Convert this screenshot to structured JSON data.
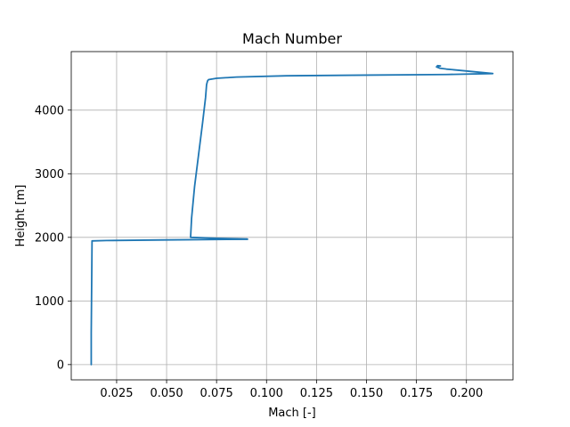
{
  "chart_data": {
    "type": "line",
    "title": "Mach Number",
    "xlabel": "Mach [-]",
    "ylabel": "Height [m]",
    "xlim": [
      0.0023,
      0.2233
    ],
    "ylim": [
      -240,
      4920
    ],
    "xticks": [
      0.025,
      0.05,
      0.075,
      0.1,
      0.125,
      0.15,
      0.175,
      0.2
    ],
    "xtick_labels": [
      "0.025",
      "0.050",
      "0.075",
      "0.100",
      "0.125",
      "0.150",
      "0.175",
      "0.200"
    ],
    "yticks": [
      0,
      1000,
      2000,
      3000,
      4000
    ],
    "ytick_labels": [
      "0",
      "1000",
      "2000",
      "3000",
      "4000"
    ],
    "grid": true,
    "series": [
      {
        "color": "#1f77b4",
        "x": [
          0.0123,
          0.0123,
          0.0125,
          0.0127,
          0.02,
          0.05,
          0.08,
          0.0905,
          0.0902,
          0.075,
          0.062,
          0.0625,
          0.064,
          0.066,
          0.068,
          0.0695,
          0.07,
          0.0705,
          0.071,
          0.075,
          0.085,
          0.11,
          0.15,
          0.19,
          0.2132,
          0.2,
          0.19,
          0.1865,
          0.185,
          0.187,
          0.1855
        ],
        "y": [
          0,
          500,
          1200,
          1944,
          1950,
          1960,
          1968,
          1970,
          1975,
          1985,
          2000,
          2300,
          2800,
          3300,
          3800,
          4200,
          4400,
          4460,
          4480,
          4500,
          4520,
          4540,
          4550,
          4560,
          4575,
          4615,
          4645,
          4660,
          4680,
          4695,
          4700
        ]
      }
    ]
  }
}
